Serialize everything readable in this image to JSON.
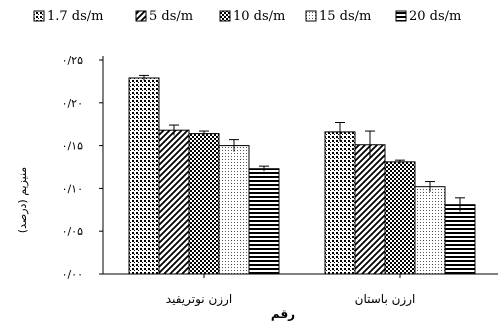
{
  "chart_data": {
    "type": "bar",
    "xlabel": "رقم",
    "ylabel": "منیزیم (درصد)",
    "ylim": [
      0,
      0.25
    ],
    "yticks": [
      {
        "value": 0,
        "label": "۰/۰۰"
      },
      {
        "value": 0.05,
        "label": "۰/۰۵"
      },
      {
        "value": 0.1,
        "label": "۰/۱۰"
      },
      {
        "value": 0.15,
        "label": "۰/۱۵"
      },
      {
        "value": 0.2,
        "label": "۰/۲۰"
      },
      {
        "value": 0.25,
        "label": "۰/۲۵"
      }
    ],
    "categories": [
      "ارزن نوتریفید",
      "ارزن باستان"
    ],
    "legend_position": "top",
    "series": [
      {
        "name": "1.7 ds/m",
        "pattern": "dots-dense",
        "values": [
          0.229,
          0.166
        ],
        "errors": [
          0.003,
          0.011
        ]
      },
      {
        "name": "5 ds/m",
        "pattern": "diagonal",
        "values": [
          0.168,
          0.151
        ],
        "errors": [
          0.006,
          0.016
        ]
      },
      {
        "name": "10 ds/m",
        "pattern": "checker",
        "values": [
          0.164,
          0.131
        ],
        "errors": [
          0.003,
          0.002
        ]
      },
      {
        "name": "15 ds/m",
        "pattern": "dots-sparse",
        "values": [
          0.15,
          0.102
        ],
        "errors": [
          0.007,
          0.006
        ]
      },
      {
        "name": "20 ds/m",
        "pattern": "horizontal",
        "values": [
          0.123,
          0.081
        ],
        "errors": [
          0.003,
          0.008
        ]
      }
    ]
  }
}
